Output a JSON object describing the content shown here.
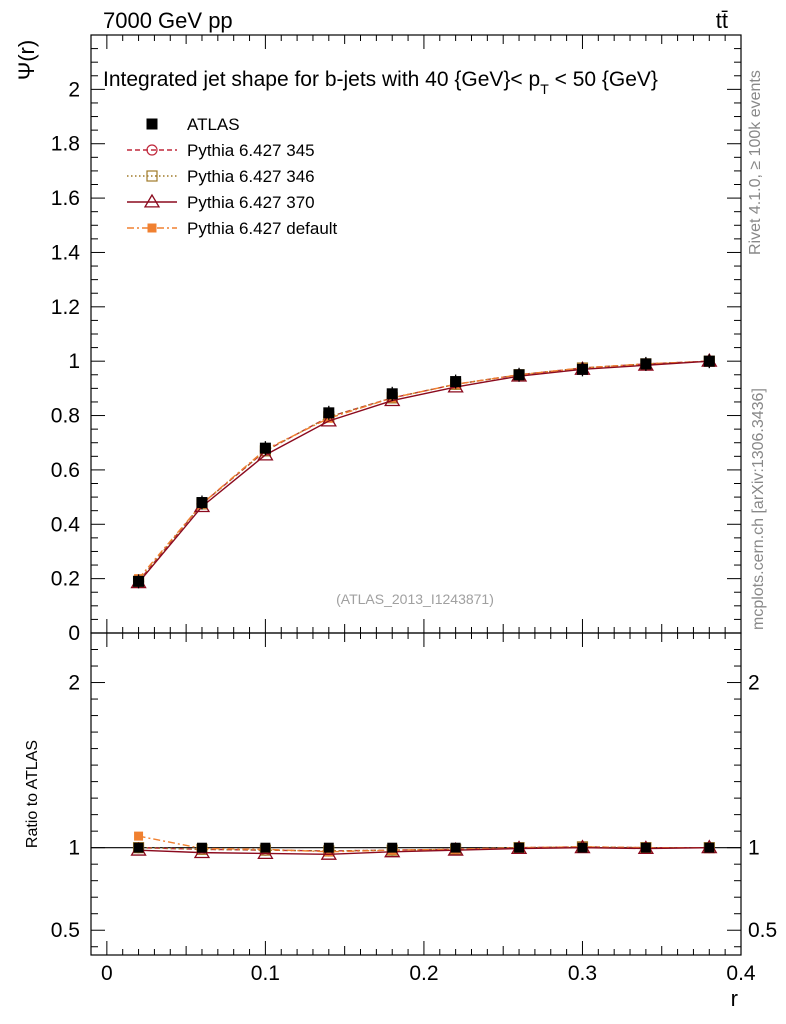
{
  "header": {
    "energy_label": "7000 GeV pp",
    "process_label": "tt̄",
    "plot_title": "Integrated jet shape for b-jets with 40 {GeV}< p",
    "title_sub": "T",
    "title_suffix": " < 50 {GeV}",
    "analysis_id": "(ATLAS_2013_I1243871)"
  },
  "side_text": {
    "rivet": "Rivet 4.1.0, ≥ 100k events",
    "mcplots": "mcplots.cern.ch [arXiv:1306.3436]"
  },
  "chart_data": [
    {
      "type": "line",
      "panel": "main",
      "title": "Integrated jet shape for b-jets with 40 {GeV}< p_T < 50 {GeV}",
      "xlabel": "r",
      "ylabel": "Ψ(r)",
      "xlim": [
        -0.01,
        0.4
      ],
      "ylim": [
        0,
        2.2
      ],
      "x_ticks": [
        0,
        0.1,
        0.2,
        0.3,
        0.4
      ],
      "x_tick_labels": [
        "0",
        "0.1",
        "0.2",
        "0.3",
        "0.4"
      ],
      "y_ticks": [
        0,
        0.2,
        0.4,
        0.6,
        0.8,
        1,
        1.2,
        1.4,
        1.6,
        1.8,
        2
      ],
      "y_tick_labels": [
        "0",
        "0.2",
        "0.4",
        "0.6",
        "0.8",
        "1",
        "1.2",
        "1.4",
        "1.6",
        "1.8",
        "2"
      ],
      "x": [
        0.02,
        0.06,
        0.1,
        0.14,
        0.18,
        0.22,
        0.26,
        0.3,
        0.34,
        0.38
      ],
      "series": [
        {
          "name": "ATLAS",
          "color": "#000000",
          "marker": "filled-square",
          "dash": "none",
          "values": [
            0.19,
            0.48,
            0.68,
            0.81,
            0.88,
            0.925,
            0.95,
            0.97,
            0.99,
            1.0
          ]
        },
        {
          "name": "Pythia 6.427 345",
          "color": "#c0283c",
          "marker": "open-circle",
          "dash": "5,3",
          "values": [
            0.19,
            0.475,
            0.67,
            0.795,
            0.865,
            0.915,
            0.95,
            0.975,
            0.99,
            1.0
          ]
        },
        {
          "name": "Pythia 6.427 346",
          "color": "#a07a28",
          "marker": "open-square",
          "dash": "1.5,2.5",
          "values": [
            0.19,
            0.475,
            0.67,
            0.795,
            0.865,
            0.915,
            0.95,
            0.975,
            0.99,
            1.0
          ]
        },
        {
          "name": "Pythia 6.427 370",
          "color": "#8b0a1e",
          "marker": "open-triangle",
          "dash": "none",
          "values": [
            0.185,
            0.465,
            0.655,
            0.78,
            0.855,
            0.905,
            0.945,
            0.97,
            0.985,
            1.0
          ]
        },
        {
          "name": "Pythia 6.427 default",
          "color": "#f08030",
          "marker": "filled-square-small",
          "dash": "7,3,2,3",
          "values": [
            0.2,
            0.475,
            0.675,
            0.79,
            0.865,
            0.915,
            0.95,
            0.975,
            0.99,
            1.0
          ]
        }
      ]
    },
    {
      "type": "line",
      "panel": "ratio",
      "xlabel": "r",
      "ylabel": "Ratio to ATLAS",
      "ylim": [
        0.35,
        2.3
      ],
      "y_ticks": [
        0.5,
        1,
        2
      ],
      "y_tick_labels": [
        "0.5",
        "1",
        "2"
      ],
      "x": [
        0.02,
        0.06,
        0.1,
        0.14,
        0.18,
        0.22,
        0.26,
        0.3,
        0.34,
        0.38
      ],
      "series": [
        {
          "name": "ATLAS",
          "color": "#000000",
          "values": [
            1,
            1,
            1,
            1,
            1,
            1,
            1,
            1,
            1,
            1
          ]
        },
        {
          "name": "Pythia 6.427 345",
          "color": "#c0283c",
          "values": [
            1.0,
            0.99,
            0.985,
            0.98,
            0.985,
            0.99,
            1.0,
            1.005,
            1.0,
            1.0
          ]
        },
        {
          "name": "Pythia 6.427 346",
          "color": "#a07a28",
          "values": [
            1.0,
            0.99,
            0.985,
            0.98,
            0.985,
            0.99,
            1.0,
            1.005,
            1.0,
            1.0
          ]
        },
        {
          "name": "Pythia 6.427 370",
          "color": "#8b0a1e",
          "values": [
            0.985,
            0.97,
            0.965,
            0.96,
            0.975,
            0.985,
            0.995,
            1.0,
            0.995,
            1.0
          ]
        },
        {
          "name": "Pythia 6.427 default",
          "color": "#f08030",
          "values": [
            1.07,
            0.995,
            0.99,
            0.975,
            0.985,
            0.99,
            1.0,
            1.005,
            1.0,
            1.0
          ]
        }
      ]
    }
  ]
}
